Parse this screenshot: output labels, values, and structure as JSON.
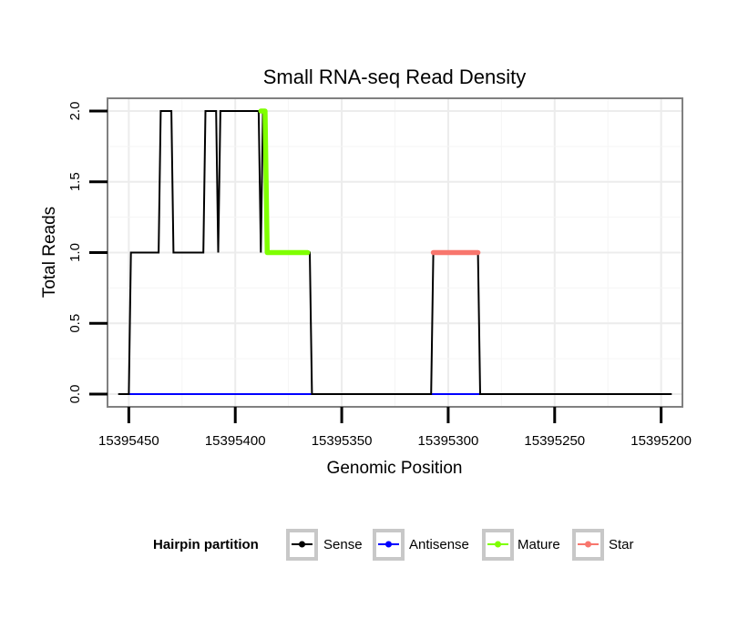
{
  "chart_data": {
    "type": "line",
    "title": "Small RNA-seq Read Density",
    "xlabel": "Genomic Position",
    "ylabel": "Total Reads",
    "x_reversed": true,
    "xlim": [
      15395460,
      15395190
    ],
    "ylim": [
      -0.09,
      2.09
    ],
    "x_ticks": [
      15395450,
      15395400,
      15395350,
      15395300,
      15395250,
      15395200
    ],
    "x_tick_labels": [
      "15395450",
      "15395400",
      "15395350",
      "15395300",
      "15395250",
      "15395200"
    ],
    "y_ticks": [
      0.0,
      0.5,
      1.0,
      1.5,
      2.0
    ],
    "y_tick_labels": [
      "0.0",
      "0.5",
      "1.0",
      "1.5",
      "2.0"
    ],
    "grid": true,
    "legend": {
      "title": "Hairpin partition",
      "position": "bottom",
      "entries": [
        "Sense",
        "Antisense",
        "Mature",
        "Star"
      ]
    },
    "series": [
      {
        "name": "Sense",
        "color": "#000000",
        "marker": "line",
        "x": [
          15395455,
          15395450,
          15395449,
          15395436,
          15395435,
          15395430,
          15395429,
          15395415,
          15395414,
          15395409,
          15395408,
          15395407,
          15395406,
          15395389,
          15395388,
          15395387,
          15395386,
          15395385,
          15395384,
          15395365,
          15395364,
          15395308,
          15395307,
          15395286,
          15395285,
          15395195
        ],
        "y": [
          0,
          0,
          1,
          1,
          2,
          2,
          1,
          1,
          2,
          2,
          1,
          2,
          2,
          2,
          1,
          2,
          2,
          1,
          1,
          1,
          0,
          0,
          1,
          1,
          0,
          0
        ]
      },
      {
        "name": "Antisense",
        "color": "#0000ff",
        "marker": "line",
        "x": [
          15395450,
          15395364,
          15395307,
          15395285
        ],
        "y": [
          0,
          0,
          0,
          0
        ]
      },
      {
        "name": "Mature",
        "color": "#7fff00",
        "marker": "thick",
        "x": [
          15395388,
          15395386,
          15395385,
          15395384,
          15395366
        ],
        "y": [
          2,
          2,
          1,
          1,
          1
        ]
      },
      {
        "name": "Star",
        "color": "#f8766d",
        "marker": "thick",
        "x": [
          15395307,
          15395286
        ],
        "y": [
          1,
          1
        ]
      }
    ]
  }
}
